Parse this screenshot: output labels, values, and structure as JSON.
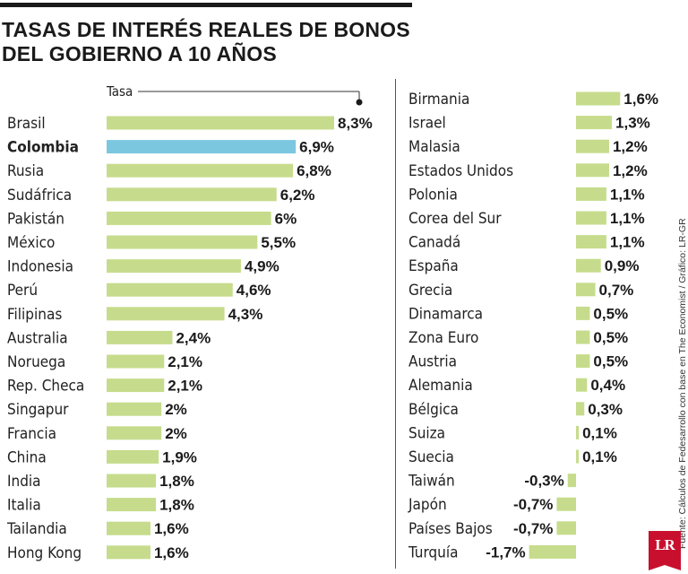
{
  "title": {
    "line1": "TASAS DE INTERÉS REALES DE BONOS",
    "line2": "DEL GOBIERNO A 10 AÑOS"
  },
  "source": "Fuente: Cálculos de Fedesarrollo con base en The Economist / Gráfico: LR-GR",
  "logo": "LR",
  "colors": {
    "bar": "#c6dc8c",
    "highlight": "#7cc7e0",
    "text": "#222222"
  },
  "chart_data": {
    "type": "bar",
    "orientation": "horizontal",
    "title": "TASAS DE INTERÉS REALES DE BONOS DEL GOBIERNO A 10 AÑOS",
    "legend_label": "Tasa",
    "unit": "%",
    "highlight": "Colombia",
    "panels": [
      {
        "categories": [
          "Brasil",
          "Colombia",
          "Rusia",
          "Sudáfrica",
          "Pakistán",
          "México",
          "Indonesia",
          "Perú",
          "Filipinas",
          "Australia",
          "Noruega",
          "Rep. Checa",
          "Singapur",
          "Francia",
          "China",
          "India",
          "Italia",
          "Tailandia",
          "Hong Kong"
        ],
        "values": [
          8.3,
          6.9,
          6.8,
          6.2,
          6,
          5.5,
          4.9,
          4.6,
          4.3,
          2.4,
          2.1,
          2.1,
          2,
          2,
          1.9,
          1.8,
          1.8,
          1.6,
          1.6
        ],
        "labels": [
          "8,3%",
          "6,9%",
          "6,8%",
          "6,2%",
          "6%",
          "5,5%",
          "4,9%",
          "4,6%",
          "4,3%",
          "2,4%",
          "2,1%",
          "2,1%",
          "2%",
          "2%",
          "1,9%",
          "1,8%",
          "1,8%",
          "1,6%",
          "1,6%"
        ]
      },
      {
        "categories": [
          "Birmania",
          "Israel",
          "Malasia",
          "Estados Unidos",
          "Polonia",
          "Corea del Sur",
          "Canadá",
          "España",
          "Grecia",
          "Dinamarca",
          "Zona Euro",
          "Austria",
          "Alemania",
          "Bélgica",
          "Suiza",
          "Suecia",
          "Taiwán",
          "Japón",
          "Países Bajos",
          "Turquía"
        ],
        "values": [
          1.6,
          1.3,
          1.2,
          1.2,
          1.1,
          1.1,
          1.1,
          0.9,
          0.7,
          0.5,
          0.5,
          0.5,
          0.4,
          0.3,
          0.1,
          0.1,
          -0.3,
          -0.7,
          -0.7,
          -1.7
        ],
        "labels": [
          "1,6%",
          "1,3%",
          "1,2%",
          "1,2%",
          "1,1%",
          "1,1%",
          "1,1%",
          "0,9%",
          "0,7%",
          "0,5%",
          "0,5%",
          "0,5%",
          "0,4%",
          "0,3%",
          "0,1%",
          "0,1%",
          "-0,3%",
          "-0,7%",
          "-0,7%",
          "-1,7%"
        ]
      }
    ]
  }
}
